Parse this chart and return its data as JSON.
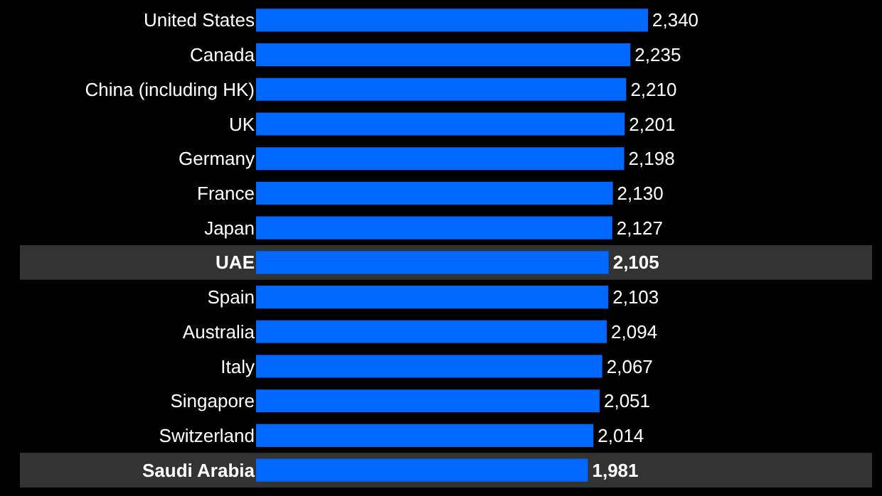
{
  "chart_data": {
    "type": "bar",
    "orientation": "horizontal",
    "categories": [
      "United States",
      "Canada",
      "China (including HK)",
      "UK",
      "Germany",
      "France",
      "Japan",
      "UAE",
      "Spain",
      "Australia",
      "Italy",
      "Singapore",
      "Switzerland",
      "Saudi Arabia"
    ],
    "values": [
      2340,
      2235,
      2210,
      2201,
      2198,
      2130,
      2127,
      2105,
      2103,
      2094,
      2067,
      2051,
      2014,
      1981
    ],
    "value_labels": [
      "2,340",
      "2,235",
      "2,210",
      "2,201",
      "2,198",
      "2,130",
      "2,127",
      "2,105",
      "2,103",
      "2,094",
      "2,067",
      "2,051",
      "2,014",
      "1,981"
    ],
    "color": "#0068ff",
    "tick_labels": "y",
    "grid": false,
    "legend": false,
    "bands": [
      {
        "axis": "y",
        "from": "UAE",
        "to": "UAE",
        "color": "#333333"
      },
      {
        "axis": "y",
        "from": "Saudi Arabia",
        "to": "Saudi Arabia",
        "color": "#333333"
      }
    ]
  }
}
